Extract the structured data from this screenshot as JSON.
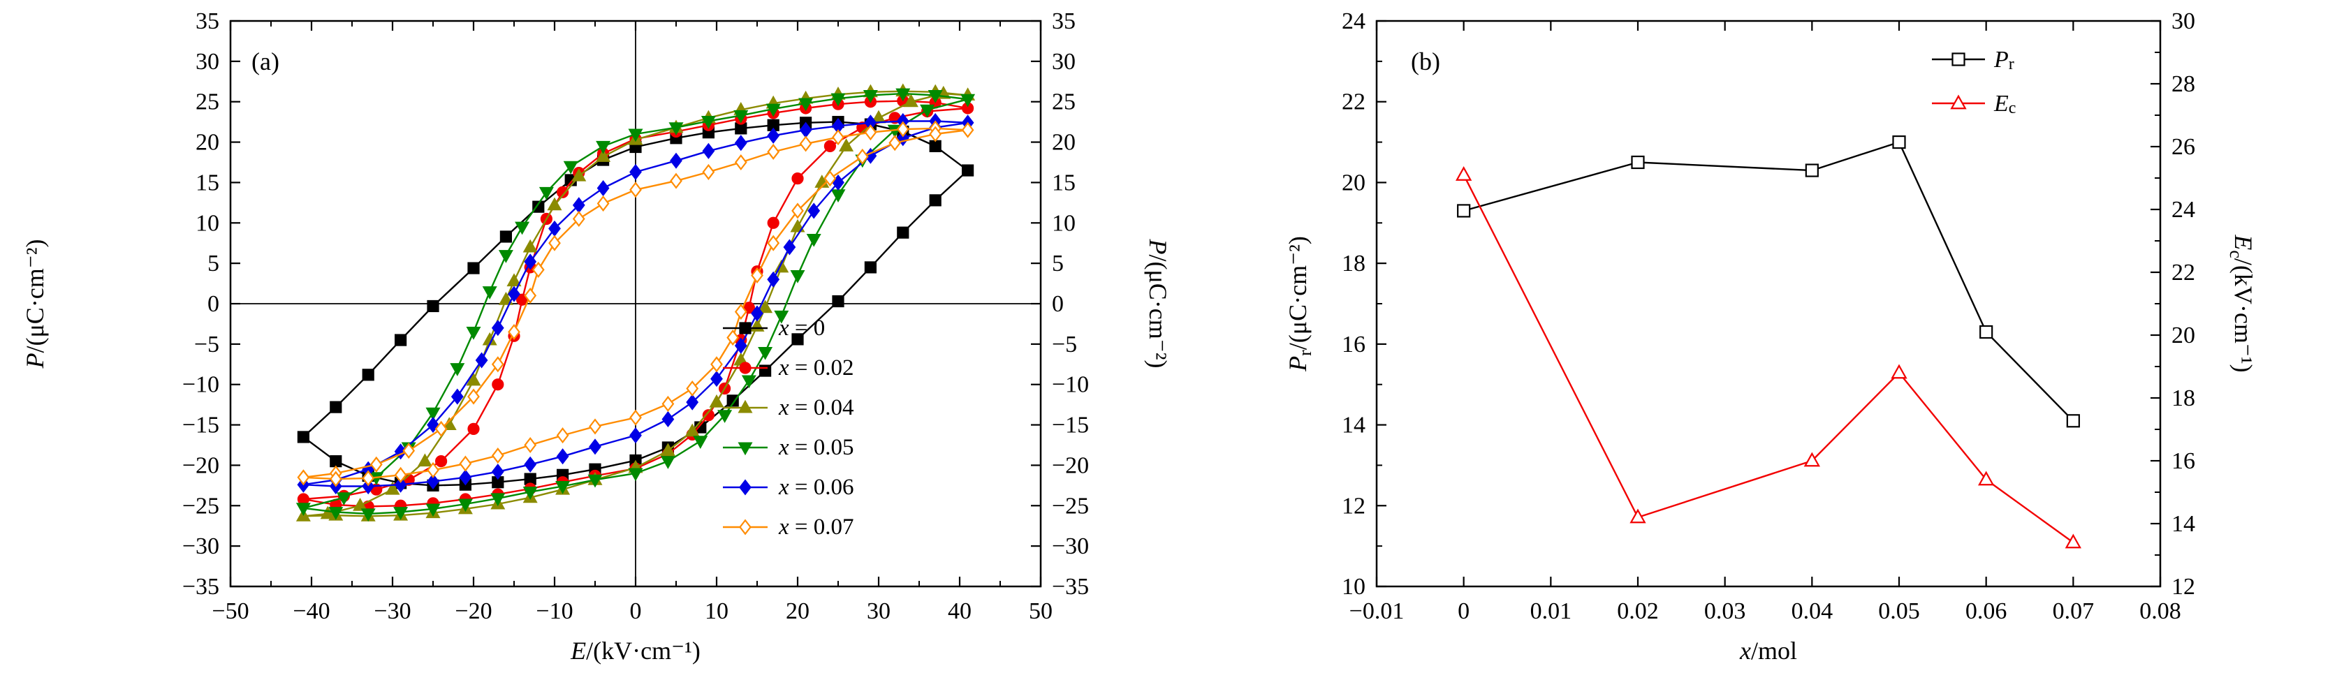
{
  "figure": {
    "background": "#ffffff",
    "panel_a_label": "(a)",
    "panel_b_label": "(b)"
  },
  "chart_data": [
    {
      "type": "line",
      "panel_label": "(a)",
      "description": "Polarization-electric field (P-E) hysteresis loops for compositions x",
      "xlabel": "*E*/(kV·cm⁻¹)",
      "ylabel_left": "*P*/(μC·cm⁻²)",
      "ylabel_right": "*P*/(μC·cm⁻²)",
      "xlim": [
        -50,
        50
      ],
      "xtick_step": 10,
      "xtick_minor_step": 5,
      "ylim": [
        -35,
        35
      ],
      "ytick_step": 5,
      "zero_lines": true,
      "grid": false,
      "legend_position": "bottom-right-inside",
      "branch_note": "descending_branch lists [E,P] points from +Emax to -Emax; the ascending branch is the point-mirror (-E,-P) of these points, forming the closed loop",
      "series": [
        {
          "id": "x0",
          "name": "*x* = 0",
          "color": "#000000",
          "marker": "square",
          "open": false,
          "descending_branch": [
            [
              41,
              16.5
            ],
            [
              37,
              19.5
            ],
            [
              33,
              21.3
            ],
            [
              29,
              22.2
            ],
            [
              25,
              22.5
            ],
            [
              21,
              22.4
            ],
            [
              17,
              22.1
            ],
            [
              13,
              21.7
            ],
            [
              9,
              21.2
            ],
            [
              5,
              20.5
            ],
            [
              0,
              19.4
            ],
            [
              -4,
              17.8
            ],
            [
              -8,
              15.3
            ],
            [
              -12,
              12.0
            ],
            [
              -16,
              8.3
            ],
            [
              -20,
              4.4
            ],
            [
              -25,
              -0.3
            ],
            [
              -29,
              -4.5
            ],
            [
              -33,
              -8.8
            ],
            [
              -37,
              -12.8
            ],
            [
              -41,
              -16.5
            ]
          ]
        },
        {
          "id": "x002",
          "name": "*x* = 0.02",
          "color": "#f20000",
          "marker": "circle",
          "open": false,
          "descending_branch": [
            [
              41,
              24.2
            ],
            [
              37,
              24.9
            ],
            [
              33,
              25.1
            ],
            [
              29,
              25.0
            ],
            [
              25,
              24.7
            ],
            [
              21,
              24.2
            ],
            [
              17,
              23.6
            ],
            [
              13,
              22.9
            ],
            [
              9,
              22.1
            ],
            [
              5,
              21.3
            ],
            [
              0,
              20.4
            ],
            [
              -4,
              18.6
            ],
            [
              -7,
              16.2
            ],
            [
              -9,
              13.8
            ],
            [
              -11,
              10.5
            ],
            [
              -13,
              4.5
            ],
            [
              -14,
              0.5
            ],
            [
              -15,
              -4.0
            ],
            [
              -17,
              -10.0
            ],
            [
              -20,
              -15.5
            ],
            [
              -24,
              -19.5
            ],
            [
              -28,
              -21.8
            ],
            [
              -32,
              -23.0
            ],
            [
              -36,
              -23.8
            ],
            [
              -41,
              -24.2
            ]
          ]
        },
        {
          "id": "x004",
          "name": "*x* = 0.04",
          "color": "#8b8b00",
          "marker": "triangle-up",
          "open": false,
          "descending_branch": [
            [
              41,
              25.8
            ],
            [
              37,
              26.2
            ],
            [
              33,
              26.3
            ],
            [
              29,
              26.2
            ],
            [
              25,
              25.9
            ],
            [
              21,
              25.4
            ],
            [
              17,
              24.8
            ],
            [
              13,
              24.0
            ],
            [
              9,
              23.0
            ],
            [
              5,
              21.8
            ],
            [
              0,
              20.3
            ],
            [
              -4,
              18.2
            ],
            [
              -7,
              15.8
            ],
            [
              -10,
              12.2
            ],
            [
              -13,
              7.0
            ],
            [
              -15,
              2.8
            ],
            [
              -16,
              0.5
            ],
            [
              -18,
              -4.5
            ],
            [
              -20,
              -9.5
            ],
            [
              -23,
              -15.0
            ],
            [
              -26,
              -19.5
            ],
            [
              -30,
              -23.0
            ],
            [
              -34,
              -25.0
            ],
            [
              -38,
              -26.0
            ],
            [
              -41,
              -26.3
            ]
          ]
        },
        {
          "id": "x005",
          "name": "*x* = 0.05",
          "color": "#008a00",
          "marker": "triangle-down",
          "open": false,
          "descending_branch": [
            [
              41,
              25.3
            ],
            [
              37,
              25.8
            ],
            [
              33,
              26.0
            ],
            [
              29,
              25.8
            ],
            [
              25,
              25.4
            ],
            [
              21,
              24.8
            ],
            [
              17,
              24.1
            ],
            [
              13,
              23.3
            ],
            [
              9,
              22.6
            ],
            [
              5,
              21.8
            ],
            [
              0,
              21.0
            ],
            [
              -4,
              19.5
            ],
            [
              -8,
              17.0
            ],
            [
              -11,
              13.8
            ],
            [
              -14,
              9.5
            ],
            [
              -16,
              6.0
            ],
            [
              -18,
              1.5
            ],
            [
              -20,
              -3.5
            ],
            [
              -22,
              -8.0
            ],
            [
              -25,
              -13.5
            ],
            [
              -28,
              -17.8
            ],
            [
              -32,
              -21.5
            ],
            [
              -36,
              -24.0
            ],
            [
              -41,
              -25.3
            ]
          ]
        },
        {
          "id": "x006",
          "name": "*x* = 0.06",
          "color": "#0000e6",
          "marker": "diamond",
          "open": false,
          "descending_branch": [
            [
              41,
              22.4
            ],
            [
              37,
              22.6
            ],
            [
              33,
              22.6
            ],
            [
              29,
              22.4
            ],
            [
              25,
              22.0
            ],
            [
              21,
              21.5
            ],
            [
              17,
              20.8
            ],
            [
              13,
              19.9
            ],
            [
              9,
              18.9
            ],
            [
              5,
              17.7
            ],
            [
              0,
              16.3
            ],
            [
              -4,
              14.3
            ],
            [
              -7,
              12.2
            ],
            [
              -10,
              9.3
            ],
            [
              -13,
              5.2
            ],
            [
              -15,
              1.2
            ],
            [
              -17,
              -3.0
            ],
            [
              -19,
              -7.0
            ],
            [
              -22,
              -11.5
            ],
            [
              -25,
              -15.0
            ],
            [
              -29,
              -18.3
            ],
            [
              -33,
              -20.5
            ],
            [
              -37,
              -21.8
            ],
            [
              -41,
              -22.4
            ]
          ]
        },
        {
          "id": "x007",
          "name": "*x* = 0.07",
          "color": "#ff8c00",
          "marker": "diamond",
          "open": true,
          "descending_branch": [
            [
              41,
              21.5
            ],
            [
              37,
              21.7
            ],
            [
              33,
              21.6
            ],
            [
              29,
              21.2
            ],
            [
              25,
              20.6
            ],
            [
              21,
              19.8
            ],
            [
              17,
              18.8
            ],
            [
              13,
              17.5
            ],
            [
              9,
              16.3
            ],
            [
              5,
              15.2
            ],
            [
              0,
              14.1
            ],
            [
              -4,
              12.4
            ],
            [
              -7,
              10.5
            ],
            [
              -10,
              7.5
            ],
            [
              -12,
              4.2
            ],
            [
              -13,
              1.0
            ],
            [
              -15,
              -3.5
            ],
            [
              -17,
              -7.5
            ],
            [
              -20,
              -11.5
            ],
            [
              -24,
              -15.5
            ],
            [
              -28,
              -18.2
            ],
            [
              -32,
              -19.9
            ],
            [
              -37,
              -21.0
            ],
            [
              -41,
              -21.5
            ]
          ]
        }
      ]
    },
    {
      "type": "line",
      "panel_label": "(b)",
      "description": "Remnant polarization Pr (left axis) and coercive field Ec (right axis) versus composition x",
      "xlabel": "*x*/mol",
      "ylabel_left": "*P*~r~/(μC·cm⁻²)",
      "ylabel_right": "*E*~c~/(kV·cm⁻¹)",
      "xlim": [
        -0.01,
        0.08
      ],
      "xtick_step": 0.01,
      "xtick_decimals": 2,
      "ylim_left": [
        10,
        24
      ],
      "ylim_right": [
        12,
        30
      ],
      "ytick_step": 2,
      "grid": false,
      "legend_position": "top-right-inside",
      "series": [
        {
          "id": "pr",
          "name": "*P*~r~",
          "axis": "left",
          "color": "#000000",
          "marker": "square",
          "open": true,
          "x": [
            0,
            0.02,
            0.04,
            0.05,
            0.06,
            0.07
          ],
          "y": [
            19.3,
            20.5,
            20.3,
            21.0,
            16.3,
            14.1
          ]
        },
        {
          "id": "ec",
          "name": "*E*~c~",
          "axis": "right",
          "color": "#f20000",
          "marker": "triangle-up",
          "open": true,
          "x": [
            0,
            0.02,
            0.04,
            0.05,
            0.06,
            0.07
          ],
          "y": [
            25.1,
            14.2,
            16.0,
            18.8,
            15.4,
            13.4
          ]
        }
      ]
    }
  ]
}
